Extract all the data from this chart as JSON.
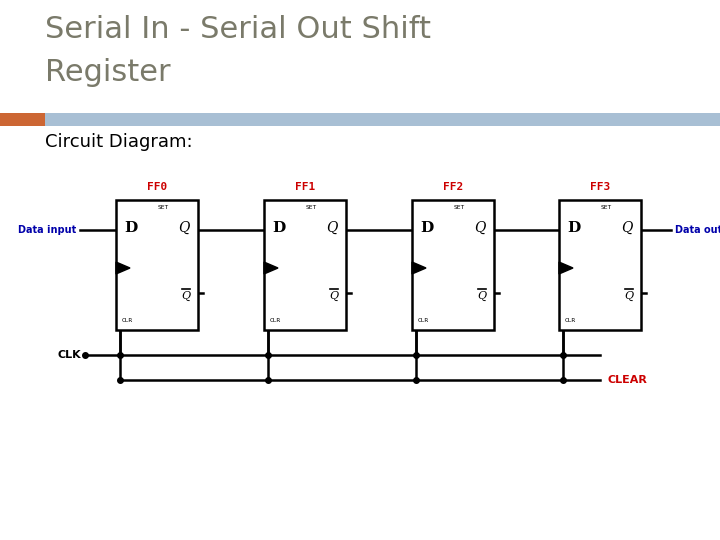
{
  "title_line1": "Serial In - Serial Out Shift",
  "title_line2": "Register",
  "subtitle": "Circuit Diagram:",
  "title_color": "#7a7a6a",
  "subtitle_color": "#000000",
  "title_fontsize": 22,
  "subtitle_fontsize": 13,
  "background_color": "#ffffff",
  "header_bar_color": "#a8bfd4",
  "header_accent_color": "#cc6633",
  "ff_labels": [
    "FF0",
    "FF1",
    "FF2",
    "FF3"
  ],
  "ff_label_color": "#cc0000",
  "wire_color": "#000000",
  "data_input_label": "Data input",
  "data_output_label": "Data output",
  "clk_label": "CLK",
  "clear_label": "CLEAR",
  "io_label_color": "#0000aa",
  "clk_label_color": "#000000",
  "clear_label_color": "#cc0000",
  "set_label": "SET",
  "clr_label": "CLR",
  "d_label": "D",
  "q_label": "Q"
}
